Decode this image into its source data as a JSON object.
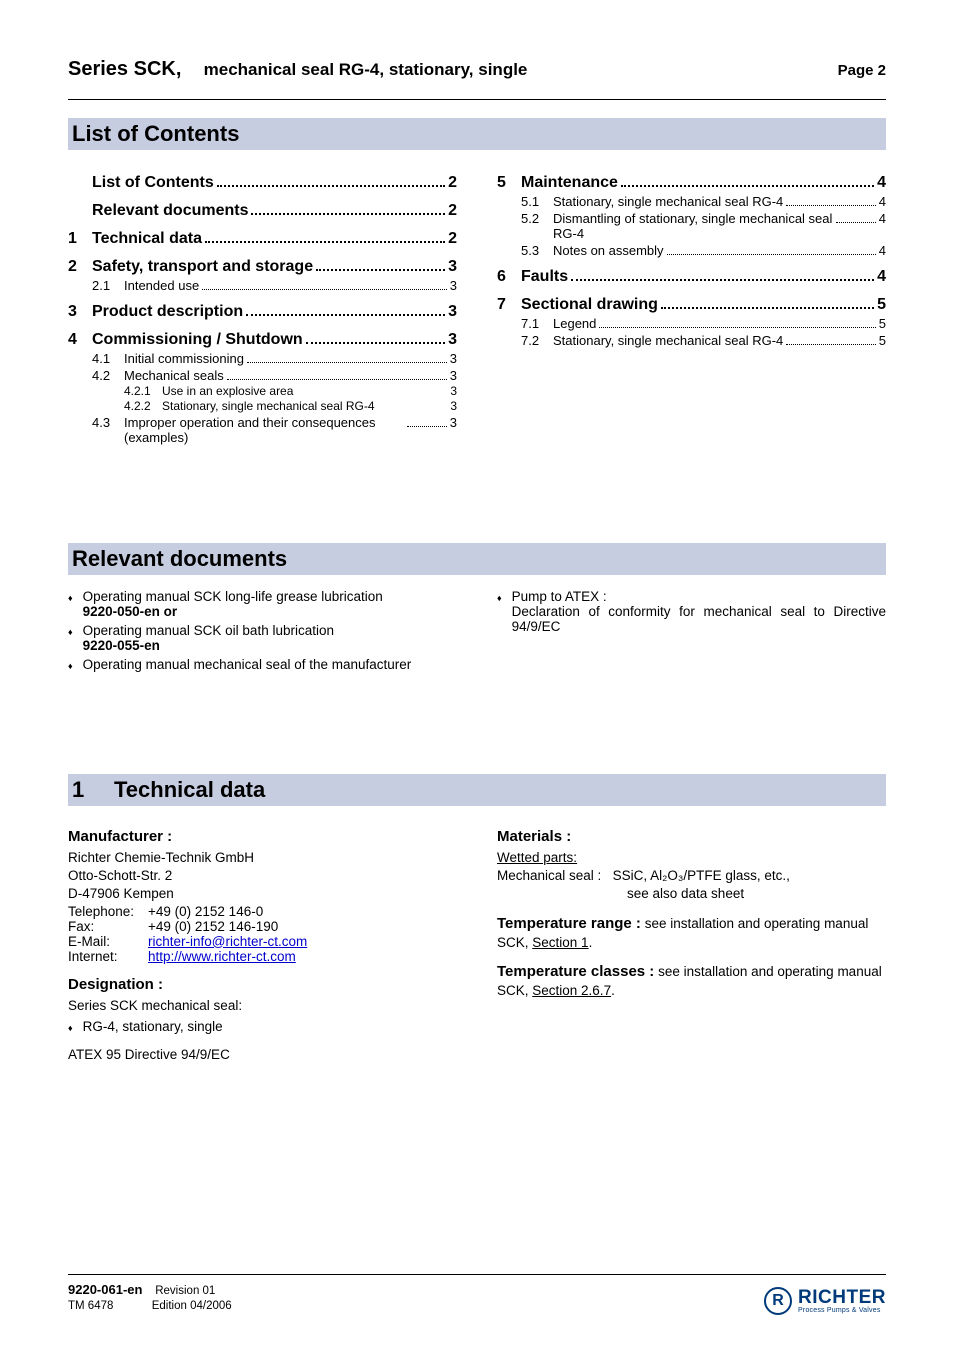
{
  "colors": {
    "band_bg": "#c7cde0",
    "link": "#0000cc",
    "brand": "#003a7a"
  },
  "header": {
    "series": "Series SCK,",
    "subtitle": "mechanical seal RG-4, stationary, single",
    "page_label": "Page 2"
  },
  "sections": {
    "toc_title": "List of Contents",
    "reldocs_title": "Relevant documents",
    "techdata_num": "1",
    "techdata_title": "Technical data"
  },
  "toc_left": [
    {
      "lvl": 1,
      "num": "",
      "txt": "List of Contents",
      "pg": "2"
    },
    {
      "lvl": 1,
      "num": "",
      "txt": "Relevant documents",
      "pg": "2"
    },
    {
      "lvl": 1,
      "num": "1",
      "txt": "Technical data",
      "pg": "2"
    },
    {
      "lvl": 1,
      "num": "2",
      "txt": "Safety, transport and storage",
      "pg": "3"
    },
    {
      "lvl": 2,
      "num": "2.1",
      "txt": "Intended use",
      "pg": "3"
    },
    {
      "lvl": 1,
      "num": "3",
      "txt": "Product description",
      "pg": "3"
    },
    {
      "lvl": 1,
      "num": "4",
      "txt": "Commissioning / Shutdown",
      "pg": "3"
    },
    {
      "lvl": 2,
      "num": "4.1",
      "txt": "Initial commissioning",
      "pg": "3"
    },
    {
      "lvl": 2,
      "num": "4.2",
      "txt": "Mechanical seals",
      "pg": "3"
    },
    {
      "lvl": 3,
      "num": "4.2.1",
      "txt": "Use in an explosive area",
      "pg": "3"
    },
    {
      "lvl": 3,
      "num": "4.2.2",
      "txt": "Stationary, single mechanical seal  RG-4",
      "pg": "3"
    },
    {
      "lvl": 2,
      "num": "4.3",
      "txt": "Improper operation and their  consequences (examples)",
      "pg": "3",
      "wrap": true
    }
  ],
  "toc_right": [
    {
      "lvl": 1,
      "num": "5",
      "txt": "Maintenance",
      "pg": "4"
    },
    {
      "lvl": 2,
      "num": "5.1",
      "txt": "Stationary, single mechanical  seal RG-4",
      "pg": "4"
    },
    {
      "lvl": 2,
      "num": "5.2",
      "txt": "Dismantling of stationary,  single mechanical seal RG-4",
      "pg": "4",
      "wrap": true
    },
    {
      "lvl": 2,
      "num": "5.3",
      "txt": "Notes on assembly",
      "pg": "4"
    },
    {
      "lvl": 1,
      "num": "6",
      "txt": "Faults",
      "pg": "4"
    },
    {
      "lvl": 1,
      "num": "7",
      "txt": "Sectional drawing",
      "pg": "5"
    },
    {
      "lvl": 2,
      "num": "7.1",
      "txt": "Legend",
      "pg": "5"
    },
    {
      "lvl": 2,
      "num": "7.2",
      "txt": "Stationary, single mechanical seal RG-4",
      "pg": "5"
    }
  ],
  "reldocs_left": [
    {
      "line1": "Operating manual SCK long-life grease lubrication",
      "bold": "9220-050-en       or"
    },
    {
      "line1": "Operating manual SCK oil bath lubrication",
      "bold": "9220-055-en"
    },
    {
      "line1": "Operating manual mechanical seal of the manufacturer",
      "justify": true
    }
  ],
  "reldocs_right": [
    {
      "line1": "Pump to ATEX :",
      "line2": "Declaration of conformity for mechanical seal to Directive 94/9/EC",
      "justify": true
    }
  ],
  "techdata": {
    "left": {
      "manufacturer_h": "Manufacturer :",
      "company": "Richter Chemie-Technik GmbH",
      "street": "Otto-Schott-Str. 2",
      "city": "D-47906 Kempen",
      "tel_label": "Telephone:",
      "tel": "      +49 (0) 2152 146-0",
      "fax_label": "Fax:",
      "fax": "+49 (0) 2152 146-190",
      "email_label": "E-Mail:",
      "email": "richter-info@richter-ct.com",
      "web_label": "Internet:",
      "web": "http://www.richter-ct.com",
      "designation_h": "Designation :",
      "designation_line": "Series SCK  mechanical seal:",
      "designation_bullet": "RG-4, stationary, single",
      "atex": "ATEX 95  Directive 94/9/EC"
    },
    "right": {
      "materials_h": "Materials :",
      "wetted": "Wetted parts:",
      "mechseal_label": "Mechanical seal :",
      "mechseal_val": "SSiC, Al₂O₃/PTFE glass, etc.,",
      "mechseal_val2": "see also data sheet",
      "temprange_h": "Temperature range :",
      "temprange_txt": "  see installation and operating manual SCK, ",
      "temprange_link": "Section 1",
      "tempclass_h": "Temperature classes :",
      "tempclass_txt": "  see installation and operating manual SCK, ",
      "tempclass_link": "Section 2.6.7"
    }
  },
  "footer": {
    "docnum": "9220-061-en",
    "rev": "Revision 01",
    "tm": "TM 6478",
    "edition": "Edition 04/2006",
    "brand": "RICHTER",
    "tagline": "Process Pumps & Valves",
    "logo_letter": "R"
  }
}
